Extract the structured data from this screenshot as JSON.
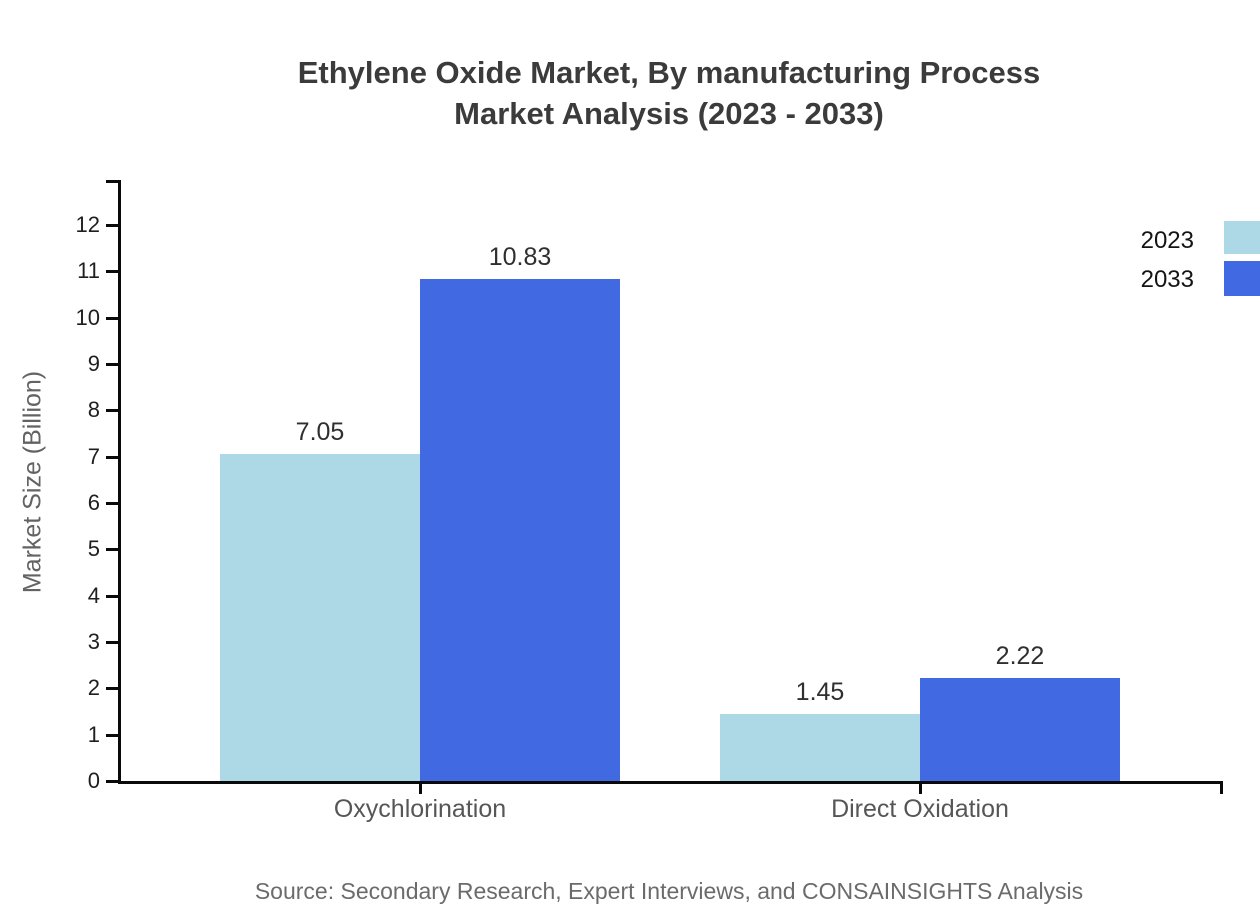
{
  "chart_data": {
    "type": "bar",
    "title_line1": "Ethylene Oxide Market, By manufacturing Process",
    "title_line2": "Market Analysis (2023 - 2033)",
    "ylabel": "Market Size (Billion)",
    "ylim": [
      0,
      12
    ],
    "yticks": [
      "0",
      "1",
      "2",
      "3",
      "4",
      "5",
      "6",
      "7",
      "8",
      "9",
      "10",
      "11",
      "12"
    ],
    "categories": [
      "Oxychlorination",
      "Direct Oxidation"
    ],
    "series": [
      {
        "name": "2023",
        "color": "#ADD8E6",
        "values": [
          7.05,
          1.45
        ],
        "value_labels": [
          "7.05",
          "1.45"
        ]
      },
      {
        "name": "2033",
        "color": "#4169E1",
        "values": [
          10.83,
          2.22
        ],
        "value_labels": [
          "10.83",
          "2.22"
        ]
      }
    ],
    "legend_position": "top-right",
    "grid": false,
    "axis_color": "#0a0a0a",
    "source": "Source: Secondary Research, Expert Interviews, and CONSAINSIGHTS Analysis"
  }
}
